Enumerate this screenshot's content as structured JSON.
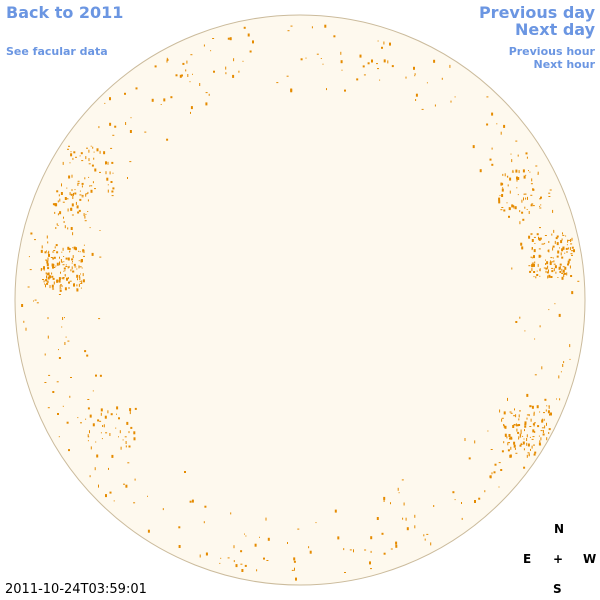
{
  "links": {
    "back": "Back to 2011",
    "facular": "See facular data",
    "previous_day": "Previous day",
    "next_day": "Next day",
    "previous_hour": "Previous hour",
    "next_hour": "Next hour"
  },
  "timestamp": "2011-10-24T03:59:01",
  "compass": {
    "north": "N",
    "east": "E",
    "center": "+",
    "west": "W",
    "south": "S"
  }
}
